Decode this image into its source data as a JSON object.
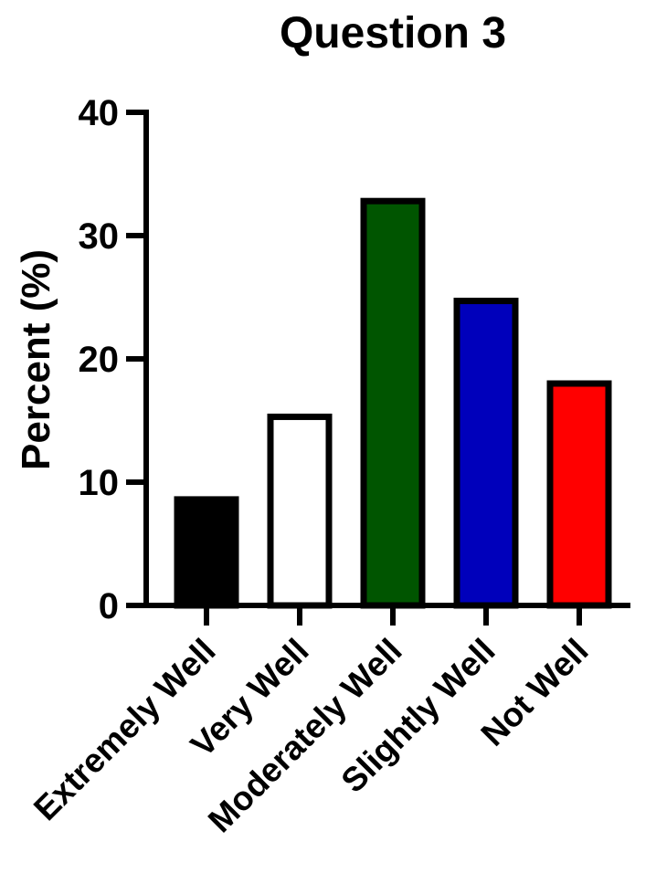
{
  "chart_data": {
    "type": "bar",
    "title": "Question 3",
    "xlabel": "",
    "ylabel": "Percent (%)",
    "ylim": [
      0,
      40
    ],
    "yticks": [
      "0",
      "10",
      "20",
      "30",
      "40"
    ],
    "categories": [
      "Extremely Well",
      "Very Well",
      "Moderately Well",
      "Slightly Well",
      "Not Well"
    ],
    "values": [
      8.6,
      15.3,
      32.8,
      24.7,
      18.0
    ],
    "colors": [
      "#000000",
      "#ffffff",
      "#005500",
      "#0000bb",
      "#ff0000"
    ],
    "grid": false,
    "legend": "none"
  }
}
